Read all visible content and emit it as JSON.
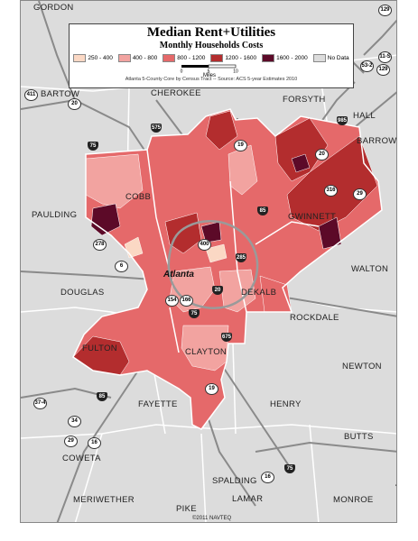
{
  "legend": {
    "title": "Median Rent+Utilities",
    "subtitle": "Monthly Households Costs",
    "items": [
      {
        "label": "250 - 400",
        "color": "#fbd8c4"
      },
      {
        "label": "400 - 800",
        "color": "#f2a3a0"
      },
      {
        "label": "800 - 1200",
        "color": "#e5696a"
      },
      {
        "label": "1200 - 1600",
        "color": "#b32d2e"
      },
      {
        "label": "1600 - 2000",
        "color": "#5c0a28"
      },
      {
        "label": "No Data",
        "color": "#dcdcdc"
      }
    ],
    "scale": {
      "ticks": [
        "0",
        "5",
        "10"
      ],
      "unit": "Miles"
    },
    "source": "Atlanta 5-County Core by Census Tract -- Source: ACS 5-year Estimates 2010"
  },
  "counties": {
    "gordon": "GORDON",
    "bartow": "BARTOW",
    "cherokee": "CHEROKEE",
    "forsyth": "FORSYTH",
    "hall": "HALL",
    "barrow": "BARROW",
    "cobb": "COBB",
    "paulding": "PAULDING",
    "gwinnett": "GWINNETT",
    "walton": "WALTON",
    "douglas": "DOUGLAS",
    "dekalb": "DEKALB",
    "rockdale": "ROCKDALE",
    "fulton": "FULTON",
    "clayton": "CLAYTON",
    "newton": "NEWTON",
    "fayette": "FAYETTE",
    "henry": "HENRY",
    "coweta": "COWETA",
    "butts": "BUTTS",
    "spalding": "SPALDING",
    "meriwether": "MERIWETHER",
    "lamar": "LAMAR",
    "monroe": "MONROE",
    "pike": "PIKE"
  },
  "city": "Atlanta",
  "shields": {
    "s129": "129",
    "s53": "53-2",
    "s129b": "129",
    "s11": "11-S",
    "s411": "411",
    "s20a": "20",
    "i575": "575",
    "i75n": "75",
    "s19": "19",
    "i985": "985",
    "s20b": "20",
    "s316": "316",
    "s29": "29",
    "i85n": "85",
    "s278": "278",
    "s6": "6",
    "s400": "400",
    "i285": "285",
    "s154": "154",
    "s166": "166",
    "i20": "20",
    "i75s": "75",
    "i675": "675",
    "s19b": "19",
    "i85s": "85",
    "s374": "37-4",
    "s34": "34",
    "s29b": "29",
    "s16": "16",
    "s16b": "16",
    "i75x": "75"
  },
  "copyright": "©2011 NAVTEQ",
  "north_label": "N"
}
